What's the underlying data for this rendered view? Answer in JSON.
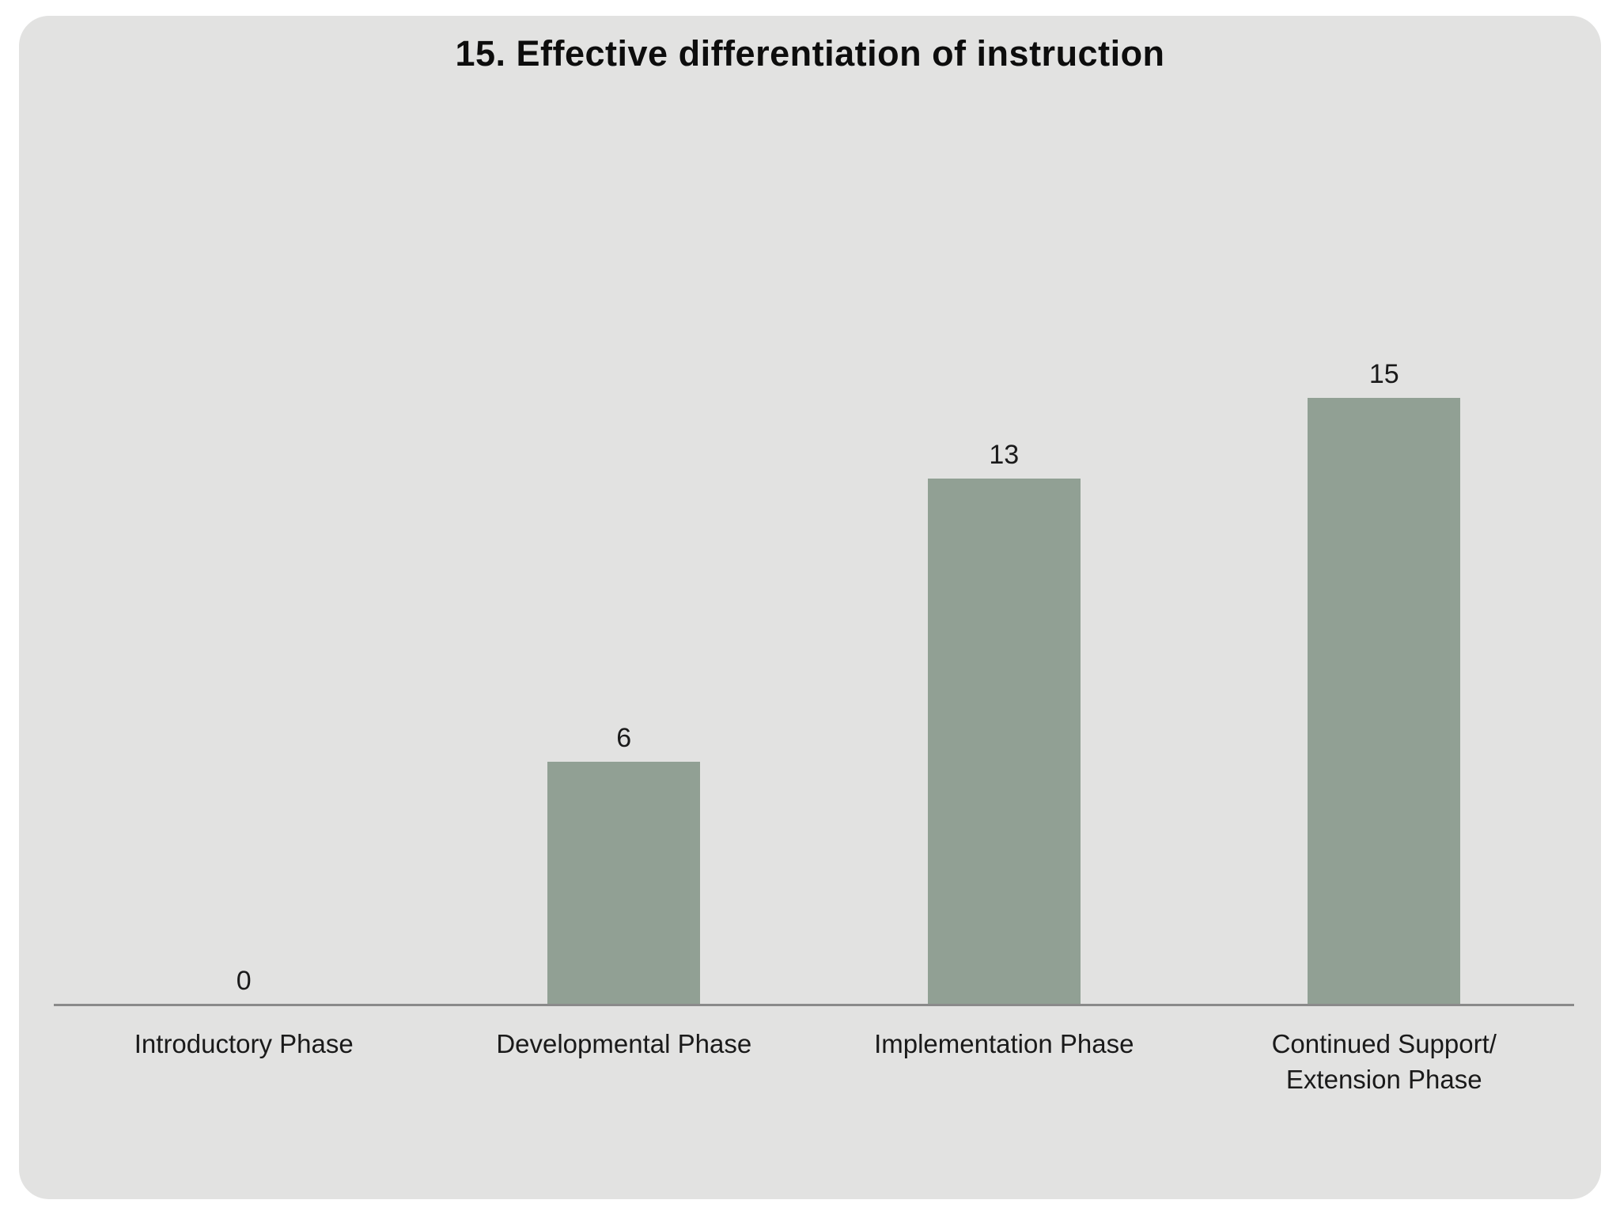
{
  "slide": {
    "background_color": "#e2e2e1",
    "page_background_color": "#ffffff"
  },
  "chart_data": {
    "type": "bar",
    "title": "15. Effective differentiation of instruction",
    "categories": [
      "Introductory Phase",
      "Developmental Phase",
      "Implementation Phase",
      "Continued Support/ Extension Phase"
    ],
    "values": [
      0,
      6,
      13,
      15
    ],
    "data_labels": [
      "0",
      "6",
      "13",
      "15"
    ],
    "xlabel": "",
    "ylabel": "",
    "ylim": [
      0,
      15
    ],
    "grid": false,
    "legend": false,
    "y_axis_visible": false,
    "bar_color": "#91a094",
    "axis_line_color": "#8a8a8a",
    "label_text_color": "#1a1a1a",
    "title_text_color": "#0d0d0d"
  }
}
